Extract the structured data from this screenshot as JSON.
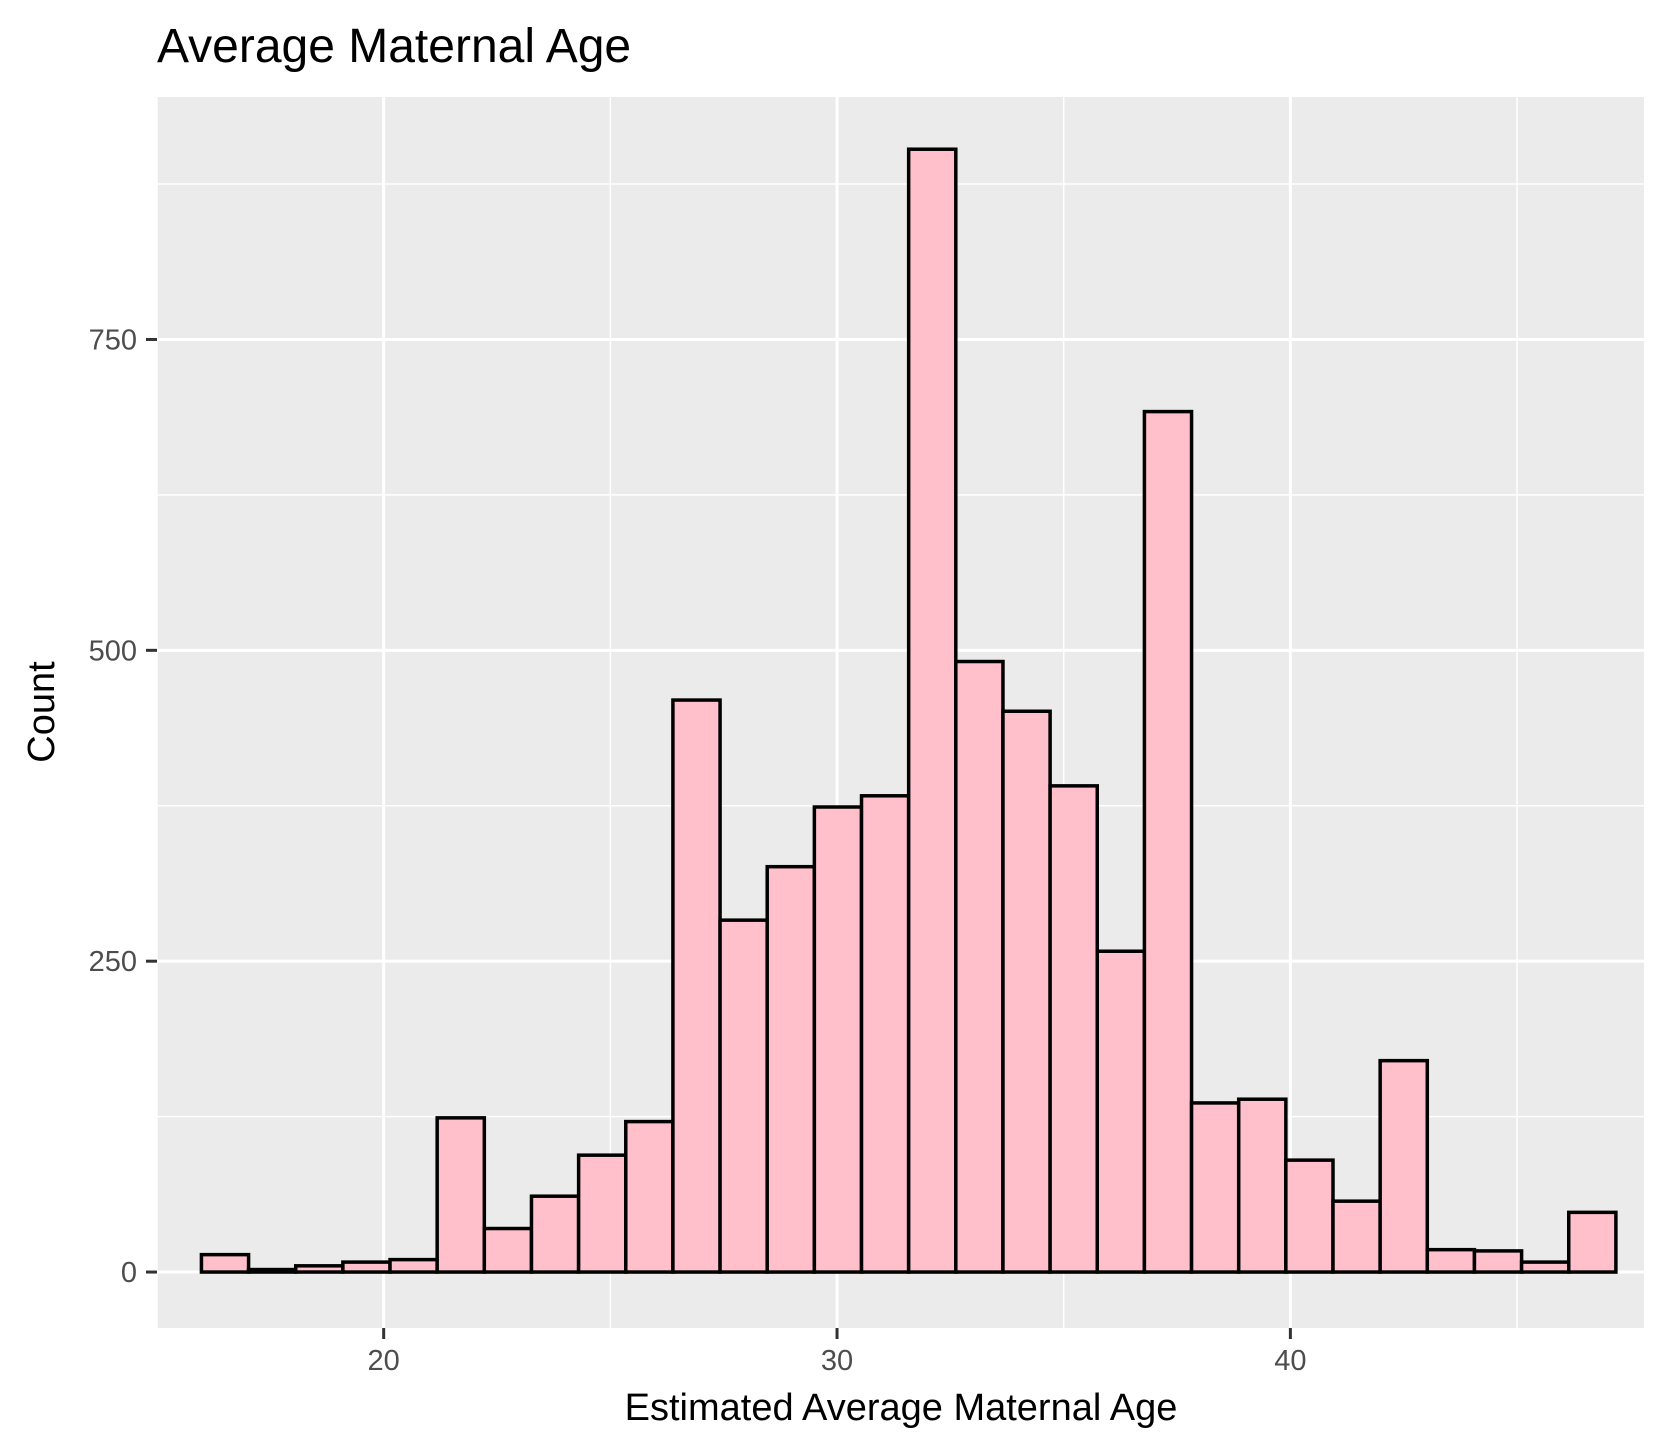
{
  "chart_data": {
    "type": "bar",
    "title": "Average Maternal Age",
    "xlabel": "Estimated Average Maternal Age",
    "ylabel": "Count",
    "x_ticks": [
      20,
      30,
      40
    ],
    "y_ticks": [
      0,
      250,
      500,
      750
    ],
    "xlim": [
      15,
      47.8
    ],
    "ylim": [
      -45,
      945
    ],
    "grid": true,
    "bin_width": 1.04,
    "bins": [
      {
        "x": 16.5,
        "count": 14
      },
      {
        "x": 17.54,
        "count": 2
      },
      {
        "x": 18.58,
        "count": 5
      },
      {
        "x": 19.62,
        "count": 8
      },
      {
        "x": 20.66,
        "count": 10
      },
      {
        "x": 21.7,
        "count": 124
      },
      {
        "x": 22.74,
        "count": 35
      },
      {
        "x": 23.78,
        "count": 61
      },
      {
        "x": 24.82,
        "count": 94
      },
      {
        "x": 25.86,
        "count": 121
      },
      {
        "x": 26.9,
        "count": 460
      },
      {
        "x": 27.94,
        "count": 283
      },
      {
        "x": 28.98,
        "count": 326
      },
      {
        "x": 30.02,
        "count": 374
      },
      {
        "x": 31.06,
        "count": 383
      },
      {
        "x": 32.1,
        "count": 903
      },
      {
        "x": 33.14,
        "count": 491
      },
      {
        "x": 34.18,
        "count": 451
      },
      {
        "x": 35.22,
        "count": 391
      },
      {
        "x": 36.26,
        "count": 258
      },
      {
        "x": 37.3,
        "count": 692
      },
      {
        "x": 38.34,
        "count": 136
      },
      {
        "x": 39.38,
        "count": 139
      },
      {
        "x": 40.42,
        "count": 90
      },
      {
        "x": 41.46,
        "count": 57
      },
      {
        "x": 42.5,
        "count": 170
      },
      {
        "x": 43.54,
        "count": 18
      },
      {
        "x": 44.58,
        "count": 17
      },
      {
        "x": 45.62,
        "count": 8
      },
      {
        "x": 46.66,
        "count": 48
      }
    ]
  },
  "colors": {
    "panel_background": "#ebebeb",
    "grid_line": "#ffffff",
    "bar_fill": "#ffc0cb",
    "bar_outline": "#000000",
    "tick_label": "#4d4d4d",
    "tick_mark": "#333333"
  }
}
